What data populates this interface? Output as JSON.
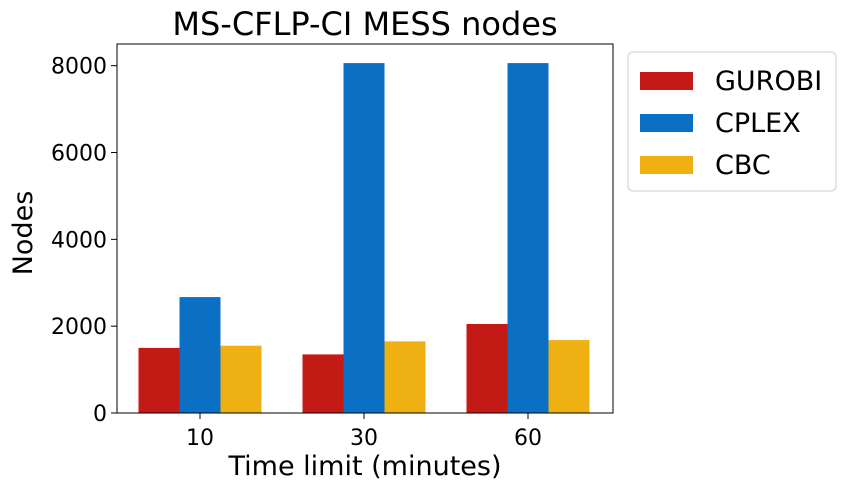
{
  "chart_data": {
    "type": "bar",
    "title": "MS-CFLP-CI MESS nodes",
    "xlabel": "Time limit (minutes)",
    "ylabel": "Nodes",
    "categories": [
      "10",
      "30",
      "60"
    ],
    "ylim": [
      0,
      8500
    ],
    "yticks": [
      "0",
      "2000",
      "4000",
      "6000",
      "8000"
    ],
    "grid": false,
    "legend_position": "outside-right-top",
    "series": [
      {
        "name": "GUROBI",
        "color": "#c41a16",
        "values": [
          1500,
          1350,
          2050
        ]
      },
      {
        "name": "CPLEX",
        "color": "#0b6fc4",
        "values": [
          2670,
          8060,
          8060
        ]
      },
      {
        "name": "CBC",
        "color": "#eeb013",
        "values": [
          1550,
          1650,
          1680
        ]
      }
    ]
  }
}
